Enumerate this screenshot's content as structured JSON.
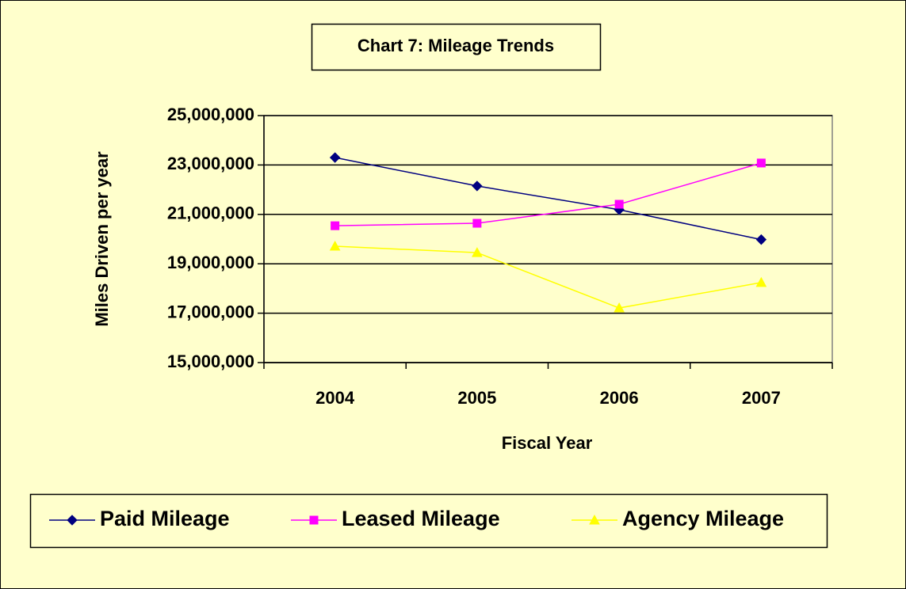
{
  "chart_data": {
    "type": "line",
    "title": "Chart 7:  Mileage Trends",
    "x_label": "Fiscal Year",
    "y_label": "Miles Driven per year",
    "categories": [
      "2004",
      "2005",
      "2006",
      "2007"
    ],
    "series": [
      {
        "name": "Paid Mileage",
        "color": "#000080",
        "marker": "diamond",
        "values": [
          23300000,
          22150000,
          21190000,
          19980000
        ]
      },
      {
        "name": "Leased Mileage",
        "color": "#FF00FF",
        "marker": "square",
        "values": [
          20540000,
          20640000,
          21410000,
          23080000
        ]
      },
      {
        "name": "Agency Mileage",
        "color": "#FFFF00",
        "marker": "triangle",
        "values": [
          19710000,
          19450000,
          17210000,
          18240000
        ]
      }
    ],
    "ylim": [
      15000000,
      25000000
    ],
    "yticks": [
      {
        "value": 15000000,
        "label": "15,000,000"
      },
      {
        "value": 17000000,
        "label": "17,000,000"
      },
      {
        "value": 19000000,
        "label": "19,000,000"
      },
      {
        "value": 21000000,
        "label": "21,000,000"
      },
      {
        "value": 23000000,
        "label": "23,000,000"
      },
      {
        "value": 25000000,
        "label": "25,000,000"
      }
    ],
    "grid": true,
    "legend": "bottom"
  }
}
